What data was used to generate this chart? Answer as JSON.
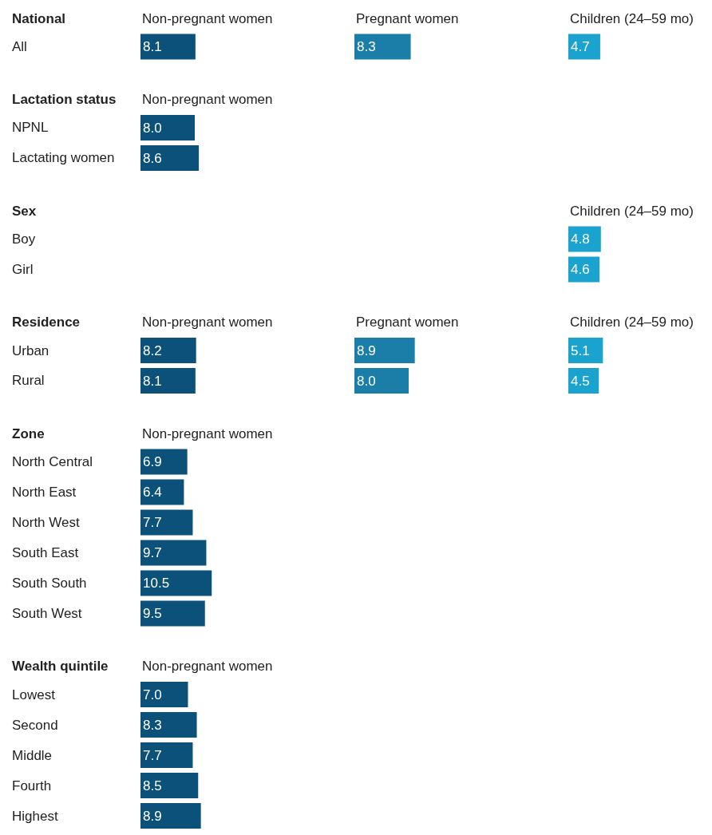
{
  "chart_data": [
    {
      "type": "bar",
      "orientation": "horizontal",
      "title": "National",
      "categories": [
        "All"
      ],
      "legend": false,
      "series": [
        {
          "name": "Non-pregnant women",
          "color": "#0b5179",
          "values": [
            8.1
          ],
          "value_labels": [
            "8.1"
          ]
        }
      ]
    },
    {
      "type": "bar",
      "orientation": "horizontal",
      "categories": [
        null
      ],
      "legend": false,
      "series": [
        {
          "name": "Pregnant women",
          "color": "#1a7ea8",
          "values": [
            8.3
          ],
          "value_labels": [
            "8.3"
          ]
        }
      ]
    },
    {
      "type": "bar",
      "orientation": "horizontal",
      "categories": [
        null
      ],
      "legend": false,
      "series": [
        {
          "name": "Children (24–59 mo)",
          "color": "#1ba3cf",
          "values": [
            4.7
          ],
          "value_labels": [
            "4.7"
          ]
        }
      ]
    },
    {
      "type": "bar",
      "orientation": "horizontal",
      "title": "Lactation status",
      "categories": [
        "NPNL",
        "Lactating women"
      ],
      "legend": false,
      "series": [
        {
          "name": "Non-pregnant women",
          "color": "#0b5179",
          "values": [
            8.0,
            8.6
          ],
          "value_labels": [
            "8.0",
            "8.6"
          ]
        }
      ]
    },
    {
      "type": "bar",
      "orientation": "horizontal",
      "title": "Sex",
      "categories": [
        "Boy",
        "Girl"
      ],
      "legend": false,
      "series": [
        {
          "name": "Children (24–59 mo)",
          "color": "#1ba3cf",
          "values": [
            4.8,
            4.6
          ],
          "value_labels": [
            "4.8",
            "4.6"
          ]
        }
      ]
    },
    {
      "type": "bar",
      "orientation": "horizontal",
      "title": "Residence",
      "categories": [
        "Urban",
        "Rural"
      ],
      "legend": false,
      "series": [
        {
          "name": "Non-pregnant women",
          "color": "#0b5179",
          "values": [
            8.2,
            8.1
          ],
          "value_labels": [
            "8.2",
            "8.1"
          ]
        }
      ]
    },
    {
      "type": "bar",
      "orientation": "horizontal",
      "categories": [
        null,
        null
      ],
      "legend": false,
      "series": [
        {
          "name": "Pregnant women",
          "color": "#1a7ea8",
          "values": [
            8.9,
            8.0
          ],
          "value_labels": [
            "8.9",
            "8.0"
          ]
        }
      ]
    },
    {
      "type": "bar",
      "orientation": "horizontal",
      "categories": [
        null,
        null
      ],
      "legend": false,
      "series": [
        {
          "name": "Children (24–59 mo)",
          "color": "#1ba3cf",
          "values": [
            5.1,
            4.5
          ],
          "value_labels": [
            "5.1",
            "4.5"
          ]
        }
      ]
    },
    {
      "type": "bar",
      "orientation": "horizontal",
      "title": "Zone",
      "categories": [
        "North Central",
        "North East",
        "North West",
        "South East",
        "South South",
        "South West"
      ],
      "legend": false,
      "series": [
        {
          "name": "Non-pregnant women",
          "color": "#0b5179",
          "values": [
            6.9,
            6.4,
            7.7,
            9.7,
            10.5,
            9.5
          ],
          "value_labels": [
            "6.9",
            "6.4",
            "7.7",
            "9.7",
            "10.5",
            "9.5"
          ]
        }
      ]
    },
    {
      "type": "bar",
      "orientation": "horizontal",
      "title": "Wealth quintile",
      "categories": [
        "Lowest",
        "Second",
        "Middle",
        "Fourth",
        "Highest"
      ],
      "legend": false,
      "series": [
        {
          "name": "Non-pregnant women",
          "color": "#0b5179",
          "values": [
            7.0,
            8.3,
            7.7,
            8.5,
            8.9
          ],
          "value_labels": [
            "7.0",
            "8.3",
            "7.7",
            "8.5",
            "8.9"
          ]
        }
      ]
    }
  ]
}
